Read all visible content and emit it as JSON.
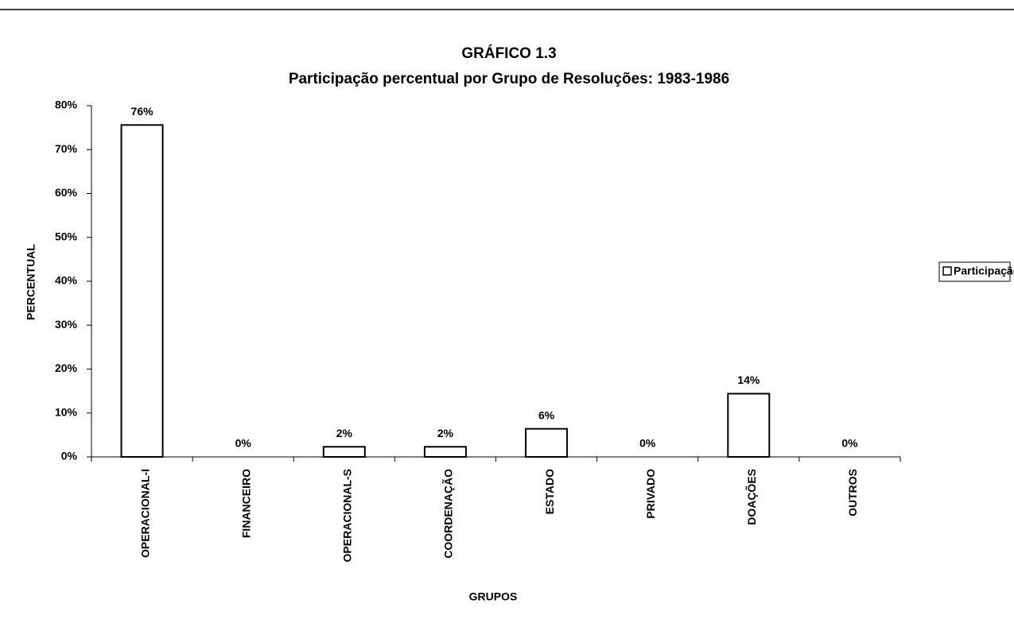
{
  "chart_data": {
    "type": "bar",
    "title": "GRÁFICO 1.3",
    "subtitle": "Participação percentual por Grupo de Resoluções: 1983-1986",
    "x_label": "GRUPOS",
    "y_label": "PERCENTUAL",
    "categories": [
      "OPERACIONAL-I",
      "FINANCEIRO",
      "OPERACIONAL-S",
      "COORDENAÇÃO",
      "ESTADO",
      "PRIVADO",
      "DOAÇÕES",
      "OUTROS"
    ],
    "series": [
      {
        "name": "Participação",
        "color": "#ffffff",
        "values": [
          75.6,
          0,
          2.3,
          2.3,
          6.4,
          0,
          14.4,
          0
        ],
        "value_labels": [
          "76%",
          "0%",
          "2%",
          "2%",
          "6%",
          "0%",
          "14%",
          "0%"
        ]
      }
    ],
    "ylim": [
      0,
      80
    ],
    "yticks": [
      {
        "value": 0,
        "label": "0%"
      },
      {
        "value": 10,
        "label": "10%"
      },
      {
        "value": 20,
        "label": "20%"
      },
      {
        "value": 30,
        "label": "30%"
      },
      {
        "value": 40,
        "label": "40%"
      },
      {
        "value": 50,
        "label": "50%"
      },
      {
        "value": 60,
        "label": "60%"
      },
      {
        "value": 70,
        "label": "70%"
      },
      {
        "value": 80,
        "label": "80%"
      }
    ],
    "grid": false,
    "legend": "right"
  }
}
